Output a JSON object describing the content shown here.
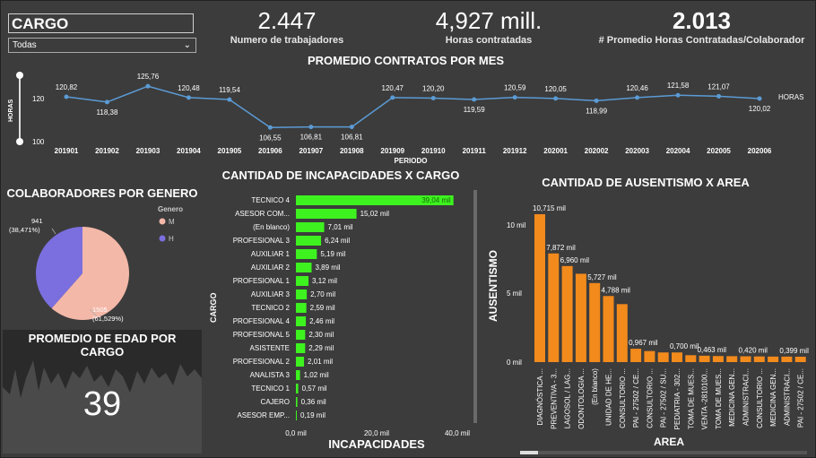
{
  "filter": {
    "title": "CARGO",
    "selected": "Todas"
  },
  "kpis": [
    {
      "value": "2.447",
      "label": "Numero de trabajadores"
    },
    {
      "value": "4,927 mill.",
      "label": "Horas contratadas"
    },
    {
      "value": "2.013",
      "label": "# Promedio Horas Contratadas/Colaborador"
    }
  ],
  "line_chart": {
    "title": "PROMEDIO CONTRATOS POR MES",
    "ylabel": "HORAS",
    "xlabel": "PERIODO",
    "legend": "HORAS",
    "yticks": [
      "120",
      "100"
    ]
  },
  "pie_chart": {
    "title": "COLABORADORES POR GENERO",
    "legend_title": "Genero",
    "legend": [
      {
        "label": "M",
        "color": "#f4b8a8"
      },
      {
        "label": "H",
        "color": "#7b6fe0"
      }
    ],
    "label_h_value": "941",
    "label_h_pct": "(38,471%)",
    "label_m_value": "1505",
    "label_m_pct": "(61,529%)"
  },
  "age": {
    "title": "PROMEDIO DE EDAD POR CARGO",
    "value": "39"
  },
  "bar_chart": {
    "title": "CANTIDAD DE INCAPACIDADES X CARGO",
    "ylabel": "CARGO",
    "xlabel": "INCAPACIDADES",
    "xticks": [
      "0,0 mil",
      "20,0 mil",
      "40,0 mil"
    ]
  },
  "col_chart": {
    "title": "CANTIDAD DE AUSENTISMO X AREA",
    "ylabel": "AUSENTISMO",
    "xlabel": "AREA",
    "yticks": [
      "10 mil",
      "5 mil",
      "0 mil"
    ]
  },
  "colors": {
    "bg": "#3c3c3c",
    "line": "#5b9bd5",
    "green": "#3df21f",
    "orange": "#f28a1c"
  },
  "chart_data": [
    {
      "type": "line",
      "title": "PROMEDIO CONTRATOS POR MES",
      "xlabel": "PERIODO",
      "ylabel": "HORAS",
      "x": [
        "201901",
        "201902",
        "201903",
        "201904",
        "201905",
        "201906",
        "201907",
        "201908",
        "201909",
        "201910",
        "201911",
        "201912",
        "202001",
        "202002",
        "202003",
        "202004",
        "202005",
        "202006"
      ],
      "series": [
        {
          "name": "HORAS",
          "values": [
            120.82,
            118.38,
            125.76,
            120.48,
            119.54,
            106.55,
            106.81,
            106.81,
            120.47,
            120.2,
            119.59,
            120.59,
            120.05,
            118.99,
            120.46,
            121.58,
            121.07,
            120.02
          ],
          "labels": [
            "120,82",
            "118,38",
            "125,76",
            "120,48",
            "119,54",
            "106,55",
            "106,81",
            "106,81",
            "120,47",
            "120,20",
            "119,59",
            "120,59",
            "120,05",
            "118,99",
            "120,46",
            "121,58",
            "121,07",
            "120,02"
          ]
        }
      ],
      "ylim": [
        100,
        130
      ]
    },
    {
      "type": "pie",
      "title": "COLABORADORES POR GENERO",
      "categories": [
        "M",
        "H"
      ],
      "values": [
        1505,
        941
      ]
    },
    {
      "type": "bar",
      "title": "CANTIDAD DE INCAPACIDADES X CARGO",
      "ylabel": "CARGO",
      "xlabel": "INCAPACIDADES",
      "categories": [
        "TECNICO 4",
        "ASESOR COM...",
        "(En blanco)",
        "PROFESIONAL 3",
        "AUXILIAR 1",
        "AUXILIAR 2",
        "PROFESIONAL 1",
        "AUXILIAR 3",
        "TECNICO 2",
        "PROFESIONAL 4",
        "PROFESIONAL 5",
        "ASISTENTE",
        "PROFESIONAL 2",
        "ANALISTA 3",
        "TECNICO 1",
        "CAJERO",
        "ASESOR EMP..."
      ],
      "values": [
        39.04,
        15.02,
        7.01,
        6.24,
        5.19,
        3.89,
        3.12,
        2.7,
        2.59,
        2.46,
        2.3,
        2.29,
        2.01,
        1.02,
        0.57,
        0.36,
        0.19
      ],
      "labels": [
        "39,04 mil",
        "15,02 mil",
        "7,01 mil",
        "6,24 mil",
        "5,19 mil",
        "3,89 mil",
        "3,12 mil",
        "2,70 mil",
        "2,59 mil",
        "2,46 mil",
        "2,30 mil",
        "2,29 mil",
        "2,01 mil",
        "1,02 mil",
        "0,57 mil",
        "0,36 mil",
        "0,19 mil"
      ],
      "xlim": [
        0,
        40
      ]
    },
    {
      "type": "bar",
      "title": "CANTIDAD DE AUSENTISMO X AREA",
      "ylabel": "AUSENTISMO",
      "xlabel": "AREA",
      "categories": [
        "DIAGNÓSTICA ...",
        "PREVENTIVA - 3...",
        "LAGOSOL / LAG...",
        "ODONTOLOGIA ...",
        "(En blanco)",
        "UNIDAD DE HE...",
        "CONSULTORIO ...",
        "PAI - 27502 / CE...",
        "CONSULTORIO ...",
        "PAI - 27502 / SU...",
        "PEDIATRIA - 302...",
        "TOMA DE MUES...",
        "VENTA -2810100...",
        "TOMA DE MUES...",
        "MEDICINA GEN...",
        "ADMINISTRACI...",
        "CONSULTORIO ...",
        "MEDICINA GEN...",
        "ADMINISTRACI...",
        "PAI - 27502 / CE..."
      ],
      "values": [
        10.715,
        7.872,
        6.96,
        6.4,
        5.727,
        4.788,
        4.2,
        0.967,
        0.8,
        0.7,
        0.7,
        0.5,
        0.463,
        0.44,
        0.43,
        0.42,
        0.41,
        0.4,
        0.399,
        0.39
      ],
      "labels": [
        "10,715 mil",
        "7,872 mil",
        "6,960 mil",
        "",
        "5,727 mil",
        "4,788 mil",
        "",
        "0,967 mil",
        "",
        "",
        "0,700 mil",
        "",
        "0,463 mil",
        "",
        "",
        "0,420 mil",
        "",
        "",
        "0,399 mil",
        ""
      ],
      "ylim": [
        0,
        12
      ]
    }
  ]
}
